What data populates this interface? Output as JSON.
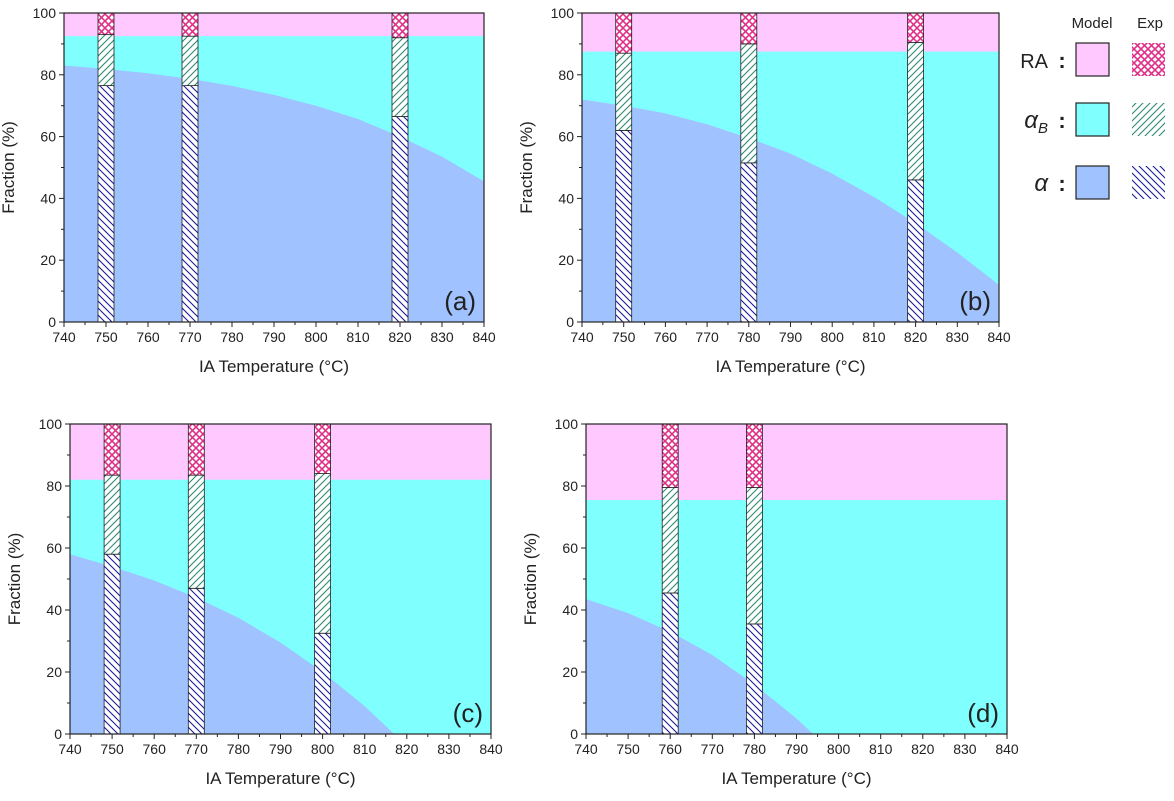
{
  "colors": {
    "RA": "#ffc8ff",
    "alpha_B": "#80ffff",
    "alpha": "#a0c2ff",
    "exp_RA_hatch": "#e0308a",
    "exp_alphaB_hatch": "#2a8a70",
    "exp_alpha_hatch": "#1a1a9a"
  },
  "legend": {
    "header_model": "Model",
    "header_exp": "Exp",
    "items": [
      {
        "key": "RA",
        "label": "RA",
        "sub": "",
        "italic": false
      },
      {
        "key": "alpha_B",
        "label": "α",
        "sub": "B",
        "italic": true
      },
      {
        "key": "alpha",
        "label": "α",
        "sub": "",
        "italic": true
      }
    ],
    "colon": ":"
  },
  "chart_data": [
    {
      "type": "area",
      "panel_label": "(a)",
      "xlabel": "IA Temperature (°C)",
      "ylabel": "Fraction (%)",
      "xlim": [
        740,
        840
      ],
      "ylim": [
        0,
        100
      ],
      "xticks": [
        "740",
        "750",
        "760",
        "770",
        "780",
        "790",
        "800",
        "810",
        "820",
        "830",
        "840"
      ],
      "yticks": [
        "0",
        "20",
        "40",
        "60",
        "80",
        "100"
      ],
      "model": {
        "x": [
          740,
          750,
          760,
          770,
          780,
          790,
          800,
          810,
          820,
          830,
          840
        ],
        "alpha": [
          83.0,
          81.9,
          80.5,
          78.7,
          76.4,
          73.5,
          70.0,
          65.7,
          60.0,
          53.5,
          45.5
        ],
        "alpha_plus_alphaB": [
          92.5,
          92.5,
          92.5,
          92.5,
          92.5,
          92.5,
          92.5,
          92.5,
          92.5,
          92.5,
          92.5
        ]
      },
      "experiments": [
        {
          "x": 750,
          "alpha": 76.5,
          "alpha_plus_alphaB": 93.0
        },
        {
          "x": 770,
          "alpha": 76.5,
          "alpha_plus_alphaB": 92.5
        },
        {
          "x": 820,
          "alpha": 66.5,
          "alpha_plus_alphaB": 92.0
        }
      ]
    },
    {
      "type": "area",
      "panel_label": "(b)",
      "xlabel": "IA Temperature (°C)",
      "ylabel": "Fraction (%)",
      "xlim": [
        740,
        840
      ],
      "ylim": [
        0,
        100
      ],
      "xticks": [
        "740",
        "750",
        "760",
        "770",
        "780",
        "790",
        "800",
        "810",
        "820",
        "830",
        "840"
      ],
      "yticks": [
        "0",
        "20",
        "40",
        "60",
        "80",
        "100"
      ],
      "model": {
        "x": [
          740,
          750,
          760,
          770,
          780,
          790,
          800,
          810,
          820,
          830,
          840
        ],
        "alpha": [
          72.0,
          70.0,
          67.5,
          64.0,
          59.5,
          54.5,
          48.0,
          40.5,
          32.0,
          22.5,
          12.0
        ],
        "alpha_plus_alphaB": [
          87.5,
          87.5,
          87.5,
          87.5,
          87.5,
          87.5,
          87.5,
          87.5,
          87.5,
          87.5,
          87.5
        ]
      },
      "experiments": [
        {
          "x": 750,
          "alpha": 62.0,
          "alpha_plus_alphaB": 87.0
        },
        {
          "x": 780,
          "alpha": 51.5,
          "alpha_plus_alphaB": 90.0
        },
        {
          "x": 820,
          "alpha": 46.0,
          "alpha_plus_alphaB": 90.5
        }
      ]
    },
    {
      "type": "area",
      "panel_label": "(c)",
      "xlabel": "IA Temperature (°C)",
      "ylabel": "Fraction (%)",
      "xlim": [
        740,
        840
      ],
      "ylim": [
        0,
        100
      ],
      "xticks": [
        "740",
        "750",
        "760",
        "770",
        "780",
        "790",
        "800",
        "810",
        "820",
        "830",
        "840"
      ],
      "yticks": [
        "0",
        "20",
        "40",
        "60",
        "80",
        "100"
      ],
      "model": {
        "x": [
          740,
          750,
          760,
          770,
          780,
          790,
          800,
          810,
          817,
          820,
          830,
          840
        ],
        "alpha": [
          58.0,
          54.0,
          49.5,
          44.0,
          37.5,
          29.5,
          20.0,
          9.0,
          0,
          0,
          0,
          0
        ],
        "alpha_plus_alphaB": [
          82.0,
          82.0,
          82.0,
          82.0,
          82.0,
          82.0,
          82.0,
          82.0,
          82.0,
          82.0,
          82.0,
          82.0
        ]
      },
      "experiments": [
        {
          "x": 750,
          "alpha": 58.0,
          "alpha_plus_alphaB": 83.5
        },
        {
          "x": 770,
          "alpha": 47.0,
          "alpha_plus_alphaB": 83.5
        },
        {
          "x": 800,
          "alpha": 32.5,
          "alpha_plus_alphaB": 84.0
        }
      ]
    },
    {
      "type": "area",
      "panel_label": "(d)",
      "xlabel": "IA Temperature (°C)",
      "ylabel": "Fraction (%)",
      "xlim": [
        740,
        840
      ],
      "ylim": [
        0,
        100
      ],
      "xticks": [
        "740",
        "750",
        "760",
        "770",
        "780",
        "790",
        "800",
        "810",
        "820",
        "830",
        "840"
      ],
      "yticks": [
        "0",
        "20",
        "40",
        "60",
        "80",
        "100"
      ],
      "model": {
        "x": [
          740,
          750,
          760,
          770,
          780,
          790,
          794,
          800,
          820,
          840
        ],
        "alpha": [
          43.5,
          39.0,
          33.0,
          25.5,
          16.0,
          5.0,
          0,
          0,
          0,
          0
        ],
        "alpha_plus_alphaB": [
          75.5,
          75.5,
          75.5,
          75.5,
          75.5,
          75.5,
          75.5,
          75.5,
          75.5,
          75.5
        ]
      },
      "experiments": [
        {
          "x": 760,
          "alpha": 45.5,
          "alpha_plus_alphaB": 79.5
        },
        {
          "x": 780,
          "alpha": 35.5,
          "alpha_plus_alphaB": 79.5
        }
      ]
    }
  ]
}
